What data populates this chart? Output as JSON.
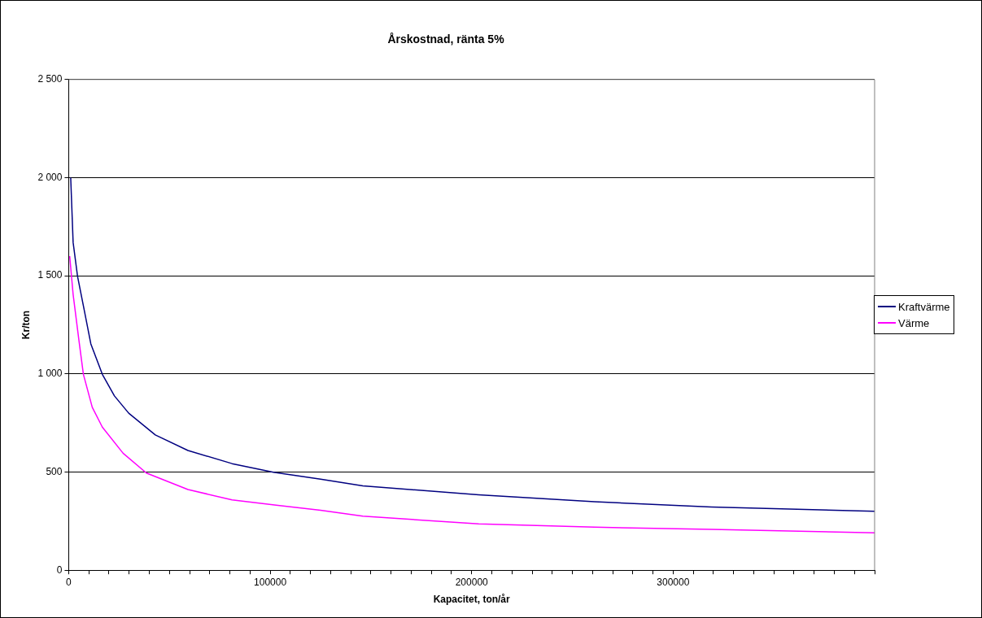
{
  "chart_data": {
    "type": "line",
    "title": "Årskostnad, ränta 5%",
    "xlabel": "Kapacitet, ton/år",
    "ylabel": "Kr/ton",
    "legend": "right",
    "grid": "y",
    "marker": "none",
    "line_style": "solid",
    "xlim": [
      0,
      400000
    ],
    "ylim": [
      0,
      2500
    ],
    "xticks": [
      0,
      {
        "value": 10000,
        "label": null
      },
      {
        "value": 20000,
        "label": null
      },
      {
        "value": 30000,
        "label": null
      },
      {
        "value": 40000,
        "label": null
      },
      {
        "value": 50000,
        "label": null
      },
      {
        "value": 60000,
        "label": null
      },
      {
        "value": 70000,
        "label": null
      },
      {
        "value": 80000,
        "label": null
      },
      {
        "value": 90000,
        "label": null
      },
      100000,
      {
        "value": 110000,
        "label": null
      },
      {
        "value": 120000,
        "label": null
      },
      {
        "value": 130000,
        "label": null
      },
      {
        "value": 140000,
        "label": null
      },
      {
        "value": 150000,
        "label": null
      },
      {
        "value": 160000,
        "label": null
      },
      {
        "value": 170000,
        "label": null
      },
      {
        "value": 180000,
        "label": null
      },
      {
        "value": 190000,
        "label": null
      },
      200000,
      {
        "value": 210000,
        "label": null
      },
      {
        "value": 220000,
        "label": null
      },
      {
        "value": 230000,
        "label": null
      },
      {
        "value": 240000,
        "label": null
      },
      {
        "value": 250000,
        "label": null
      },
      {
        "value": 260000,
        "label": null
      },
      {
        "value": 270000,
        "label": null
      },
      {
        "value": 280000,
        "label": null
      },
      {
        "value": 290000,
        "label": null
      },
      300000,
      {
        "value": 310000,
        "label": null
      },
      {
        "value": 320000,
        "label": null
      },
      {
        "value": 330000,
        "label": null
      },
      {
        "value": 340000,
        "label": null
      },
      {
        "value": 350000,
        "label": null
      },
      {
        "value": 360000,
        "label": null
      },
      {
        "value": 370000,
        "label": null
      },
      {
        "value": 380000,
        "label": null
      },
      {
        "value": 390000,
        "label": null
      },
      {
        "value": 400000,
        "label": null
      }
    ],
    "yticks": [
      0,
      500,
      {
        "value": 1000,
        "label": "1 000"
      },
      {
        "value": 1500,
        "label": "1 500"
      },
      {
        "value": 2000,
        "label": "2 000"
      },
      {
        "value": 2500,
        "label": "2 500"
      }
    ],
    "series": [
      {
        "name": "Kraftvärme",
        "color": "#000080",
        "x": [
          1000,
          2200,
          4400,
          7300,
          11000,
          16700,
          22700,
          29800,
          43000,
          59200,
          81100,
          101600,
          125000,
          146000,
          203500,
          261000,
          319000,
          400000
        ],
        "values": [
          2000,
          1670,
          1497,
          1347,
          1153,
          998,
          888,
          800,
          689,
          610,
          543,
          499,
          464,
          430,
          384,
          349,
          322,
          300
        ]
      },
      {
        "name": "Värme",
        "color": "#ff00ff",
        "x": [
          500,
          2200,
          5100,
          7300,
          11700,
          16700,
          27000,
          38600,
          59200,
          81100,
          103000,
          125000,
          146000,
          203500,
          261000,
          319000,
          400000
        ],
        "values": [
          1600,
          1405,
          1170,
          998,
          830,
          729,
          596,
          495,
          411,
          358,
          331,
          305,
          275,
          236,
          219,
          208,
          190
        ]
      }
    ]
  }
}
